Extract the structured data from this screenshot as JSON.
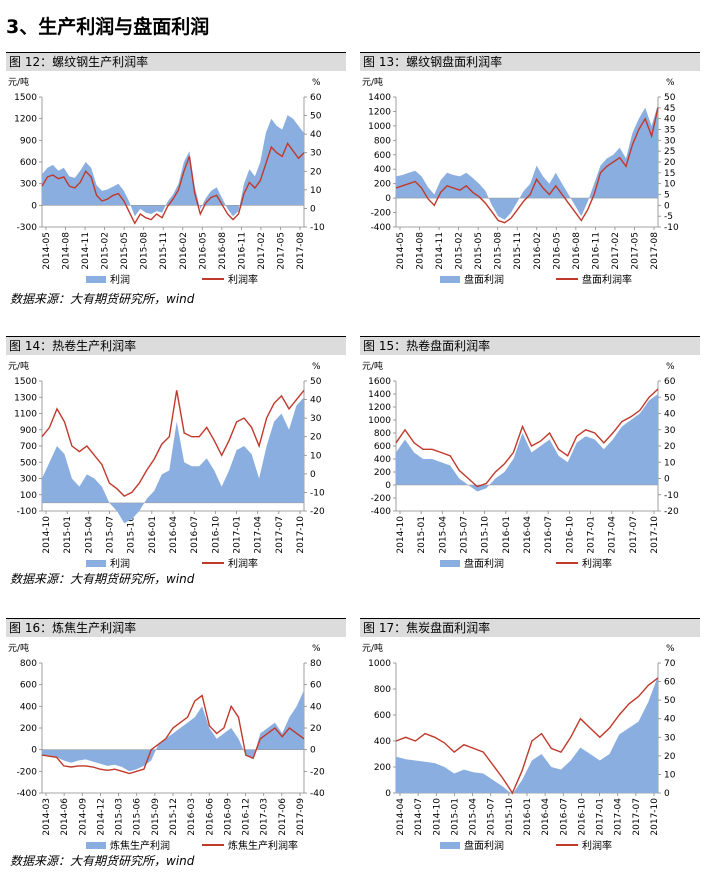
{
  "section_title": "3、生产利润与盘面利润",
  "source_text": "数据来源：大有期货研究所，wind",
  "colors": {
    "area": "#8aaee0",
    "line": "#c0392b",
    "header_bg": "#dcdcdc"
  },
  "chart_data": [
    {
      "type": "area",
      "title": "图 12：螺纹钢生产利润率",
      "left_unit": "元/吨",
      "right_unit": "%",
      "ylim": [
        -300,
        1500
      ],
      "y2lim": [
        -10,
        60
      ],
      "yticks": [
        -300,
        0,
        300,
        600,
        900,
        1200,
        1500
      ],
      "y2ticks": [
        -10,
        0,
        10,
        20,
        30,
        40,
        50,
        60
      ],
      "xticks": [
        "2014-05",
        "2014-08",
        "2014-11",
        "2015-02",
        "2015-05",
        "2015-08",
        "2015-11",
        "2016-02",
        "2016-05",
        "2016-08",
        "2016-11",
        "2017-02",
        "2017-05",
        "2017-08"
      ],
      "area_series": {
        "name": "利润",
        "values": [
          430,
          520,
          560,
          480,
          520,
          400,
          380,
          480,
          600,
          520,
          280,
          200,
          220,
          260,
          300,
          200,
          50,
          -150,
          -50,
          -100,
          -120,
          -80,
          -100,
          50,
          150,
          300,
          600,
          750,
          250,
          -50,
          100,
          200,
          250,
          100,
          -50,
          -150,
          -80,
          300,
          500,
          400,
          600,
          1000,
          1200,
          1100,
          1050,
          1250,
          1200,
          1100,
          1000
        ]
      },
      "line_series": {
        "name": "利润率",
        "values": [
          12,
          17,
          18,
          16,
          17,
          12,
          11,
          14,
          20,
          17,
          7,
          4,
          5,
          7,
          8,
          4,
          -2,
          -8,
          -3,
          -5,
          -6,
          -3,
          -5,
          1,
          5,
          10,
          20,
          28,
          8,
          -3,
          3,
          6,
          7,
          2,
          -3,
          -6,
          -3,
          8,
          14,
          11,
          15,
          24,
          33,
          30,
          28,
          35,
          31,
          27,
          30
        ]
      },
      "legend": [
        "利润",
        "利润率"
      ]
    },
    {
      "type": "area",
      "title": "图 13：螺纹钢盘面利润率",
      "left_unit": "元/吨",
      "right_unit": "%",
      "ylim": [
        -400,
        1400
      ],
      "y2lim": [
        -10,
        50
      ],
      "yticks": [
        -400,
        -200,
        0,
        200,
        400,
        600,
        800,
        1000,
        1200,
        1400
      ],
      "y2ticks": [
        -10,
        -5,
        0,
        5,
        10,
        15,
        20,
        25,
        30,
        35,
        40,
        45,
        50
      ],
      "xticks": [
        "2014-05",
        "2014-08",
        "2014-11",
        "2015-02",
        "2015-05",
        "2015-08",
        "2015-11",
        "2016-02",
        "2016-05",
        "2016-08",
        "2016-11",
        "2017-02",
        "2017-05",
        "2017-08"
      ],
      "area_series": {
        "name": "盘面利润",
        "values": [
          300,
          320,
          350,
          380,
          300,
          150,
          50,
          250,
          350,
          320,
          300,
          350,
          280,
          200,
          100,
          -100,
          -250,
          -300,
          -200,
          -50,
          100,
          200,
          450,
          300,
          200,
          350,
          200,
          50,
          -100,
          -250,
          -50,
          200,
          450,
          550,
          600,
          700,
          550,
          900,
          1100,
          1250,
          1000,
          1300
        ]
      },
      "line_series": {
        "name": "盘面利润率",
        "values": [
          8,
          9,
          10,
          11,
          8,
          3,
          0,
          6,
          9,
          8,
          7,
          9,
          6,
          4,
          1,
          -3,
          -7,
          -8,
          -6,
          -2,
          2,
          5,
          12,
          8,
          5,
          9,
          5,
          1,
          -3,
          -7,
          -2,
          5,
          15,
          18,
          20,
          22,
          18,
          28,
          35,
          40,
          32,
          45
        ]
      },
      "legend": [
        "盘面利润",
        "盘面利润率"
      ]
    },
    {
      "type": "area",
      "title": "图 14：热卷生产利润率",
      "left_unit": "元/吨",
      "right_unit": "%",
      "ylim": [
        -100,
        1500
      ],
      "y2lim": [
        -20,
        50
      ],
      "yticks": [
        -100,
        100,
        300,
        500,
        700,
        900,
        1100,
        1300,
        1500
      ],
      "y2ticks": [
        -20,
        -10,
        0,
        10,
        20,
        30,
        40,
        50
      ],
      "xticks": [
        "2014-10",
        "2015-01",
        "2015-04",
        "2015-07",
        "2015-10",
        "2016-01",
        "2016-04",
        "2016-07",
        "2016-10",
        "2017-01",
        "2017-04",
        "2017-07",
        "2017-10"
      ],
      "area_series": {
        "name": "利润",
        "values": [
          300,
          500,
          700,
          600,
          300,
          200,
          350,
          300,
          200,
          0,
          -100,
          -250,
          -200,
          -100,
          50,
          150,
          350,
          400,
          1000,
          500,
          450,
          450,
          550,
          400,
          200,
          400,
          650,
          700,
          600,
          300,
          700,
          1000,
          1100,
          900,
          1200,
          1300
        ]
      },
      "line_series": {
        "name": "利润率",
        "values": [
          20,
          25,
          35,
          28,
          15,
          12,
          15,
          10,
          5,
          -5,
          -8,
          -12,
          -10,
          -5,
          2,
          8,
          16,
          20,
          45,
          22,
          20,
          20,
          25,
          18,
          10,
          18,
          28,
          30,
          25,
          15,
          30,
          38,
          42,
          35,
          40,
          45
        ]
      },
      "legend": [
        "利润",
        "利润率"
      ]
    },
    {
      "type": "area",
      "title": "图 15：热卷盘面利润率",
      "left_unit": "元/吨",
      "right_unit": "%",
      "ylim": [
        -400,
        1600
      ],
      "y2lim": [
        -20,
        60
      ],
      "yticks": [
        -400,
        -200,
        0,
        200,
        400,
        600,
        800,
        1000,
        1200,
        1400,
        1600
      ],
      "y2ticks": [
        -20,
        -10,
        0,
        10,
        20,
        30,
        40,
        50,
        60
      ],
      "xticks": [
        "2014-10",
        "2015-01",
        "2015-04",
        "2015-07",
        "2015-10",
        "2016-01",
        "2016-04",
        "2016-07",
        "2016-10",
        "2017-01",
        "2017-04",
        "2017-07",
        "2017-10"
      ],
      "area_series": {
        "name": "盘面利润",
        "values": [
          500,
          700,
          500,
          400,
          400,
          350,
          300,
          100,
          0,
          -100,
          -50,
          100,
          200,
          400,
          800,
          500,
          600,
          700,
          450,
          350,
          650,
          750,
          700,
          550,
          700,
          900,
          1000,
          1100,
          1300,
          1400
        ]
      },
      "line_series": {
        "name": "利润率",
        "values": [
          22,
          30,
          22,
          18,
          18,
          16,
          14,
          5,
          0,
          -5,
          -3,
          4,
          9,
          16,
          32,
          20,
          23,
          28,
          18,
          14,
          26,
          30,
          28,
          22,
          28,
          35,
          38,
          42,
          50,
          55
        ]
      },
      "legend": [
        "盘面利润",
        "利润率"
      ]
    },
    {
      "type": "area",
      "title": "图 16：炼焦生产利润率",
      "left_unit": "元/吨",
      "right_unit": "%",
      "ylim": [
        -400,
        800
      ],
      "y2lim": [
        -40,
        80
      ],
      "yticks": [
        -400,
        -200,
        0,
        200,
        400,
        600,
        800
      ],
      "y2ticks": [
        -40,
        -20,
        0,
        20,
        40,
        60,
        80
      ],
      "xticks": [
        "2014-03",
        "2014-06",
        "2014-09",
        "2014-12",
        "2015-03",
        "2015-06",
        "2015-09",
        "2015-12",
        "2016-03",
        "2016-06",
        "2016-09",
        "2016-12",
        "2017-03",
        "2017-06",
        "2017-09"
      ],
      "area_series": {
        "name": "炼焦生产利润",
        "values": [
          -50,
          -60,
          -70,
          -100,
          -120,
          -100,
          -90,
          -110,
          -130,
          -150,
          -140,
          -160,
          -200,
          -180,
          -150,
          -100,
          50,
          100,
          150,
          200,
          250,
          300,
          400,
          200,
          100,
          150,
          200,
          100,
          -50,
          -80,
          150,
          200,
          250,
          150,
          300,
          400,
          550
        ]
      },
      "line_series": {
        "name": "炼焦生产利润率",
        "values": [
          -5,
          -6,
          -7,
          -15,
          -16,
          -15,
          -15,
          -16,
          -18,
          -19,
          -18,
          -20,
          -22,
          -20,
          -18,
          0,
          5,
          10,
          20,
          25,
          30,
          45,
          50,
          22,
          15,
          20,
          40,
          30,
          -5,
          -8,
          10,
          15,
          20,
          12,
          20,
          15,
          10
        ]
      },
      "legend": [
        "炼焦生产利润",
        "炼焦生产利润率"
      ]
    },
    {
      "type": "area",
      "title": "图 17：焦炭盘面利润率",
      "left_unit": "元/吨",
      "right_unit": "%",
      "ylim": [
        0,
        1000
      ],
      "y2lim": [
        0,
        70
      ],
      "yticks": [
        0,
        200,
        400,
        600,
        800,
        1000
      ],
      "y2ticks": [
        0,
        10,
        20,
        30,
        40,
        50,
        60,
        70
      ],
      "xticks": [
        "2014-04",
        "2014-07",
        "2014-10",
        "2015-01",
        "2015-04",
        "2015-07",
        "2015-10",
        "2016-01",
        "2016-04",
        "2016-07",
        "2016-10",
        "2017-01",
        "2017-04",
        "2017-07",
        "2017-10"
      ],
      "area_series": {
        "name": "盘面利润",
        "values": [
          280,
          260,
          250,
          240,
          230,
          200,
          150,
          180,
          160,
          150,
          100,
          50,
          -10,
          100,
          250,
          300,
          200,
          180,
          250,
          350,
          300,
          250,
          300,
          450,
          500,
          550,
          700,
          900
        ]
      },
      "line_series": {
        "name": "利润率",
        "values": [
          28,
          30,
          28,
          32,
          30,
          27,
          22,
          26,
          24,
          22,
          15,
          8,
          0,
          12,
          28,
          32,
          24,
          22,
          30,
          40,
          35,
          30,
          35,
          42,
          48,
          52,
          58,
          62
        ]
      },
      "legend": [
        "盘面利润",
        "利润率"
      ]
    }
  ]
}
